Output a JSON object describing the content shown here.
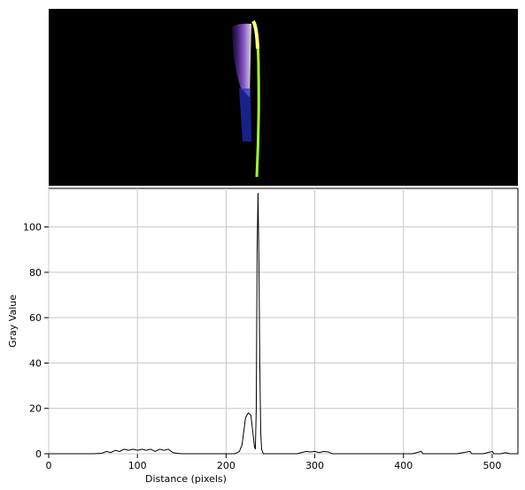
{
  "chart_data": {
    "type": "line",
    "x_label": "Distance (pixels)",
    "y_label": "Gray Value",
    "xlim": [
      0,
      529
    ],
    "ylim": [
      0,
      117
    ],
    "xticks": [
      0,
      100,
      200,
      300,
      400,
      500
    ],
    "yticks": [
      0,
      20,
      40,
      60,
      80,
      100
    ],
    "grid": true,
    "color": "#000000",
    "x": [
      0,
      10,
      20,
      30,
      40,
      50,
      60,
      65,
      70,
      75,
      80,
      85,
      90,
      95,
      100,
      105,
      110,
      115,
      120,
      125,
      130,
      135,
      140,
      145,
      150,
      160,
      170,
      180,
      190,
      200,
      210,
      215,
      218,
      220,
      222,
      225,
      228,
      230,
      232,
      233,
      234,
      235,
      236,
      237,
      238,
      239,
      240,
      242,
      250,
      260,
      270,
      280,
      285,
      290,
      295,
      300,
      305,
      310,
      315,
      320,
      330,
      350,
      370,
      390,
      410,
      420,
      422,
      440,
      460,
      475,
      477,
      490,
      500,
      502,
      510,
      515,
      520,
      529
    ],
    "values": [
      0,
      0,
      0,
      0,
      0,
      0,
      0.2,
      1,
      0.5,
      1.5,
      1,
      2,
      1.5,
      2,
      1.5,
      2,
      1.5,
      2,
      1,
      2,
      1.5,
      2,
      0.5,
      0.2,
      0,
      0,
      0,
      0,
      0,
      0,
      0,
      1,
      4,
      10,
      16,
      18,
      17,
      10,
      3,
      2,
      20,
      90,
      115,
      85,
      40,
      10,
      2,
      0,
      0,
      0,
      0,
      0,
      0.5,
      1,
      0.8,
      1,
      0.5,
      1,
      0.8,
      0,
      0,
      0,
      0,
      0,
      0,
      1,
      0,
      0,
      0,
      1,
      0,
      0,
      1,
      0,
      0,
      0.5,
      0,
      0
    ]
  }
}
